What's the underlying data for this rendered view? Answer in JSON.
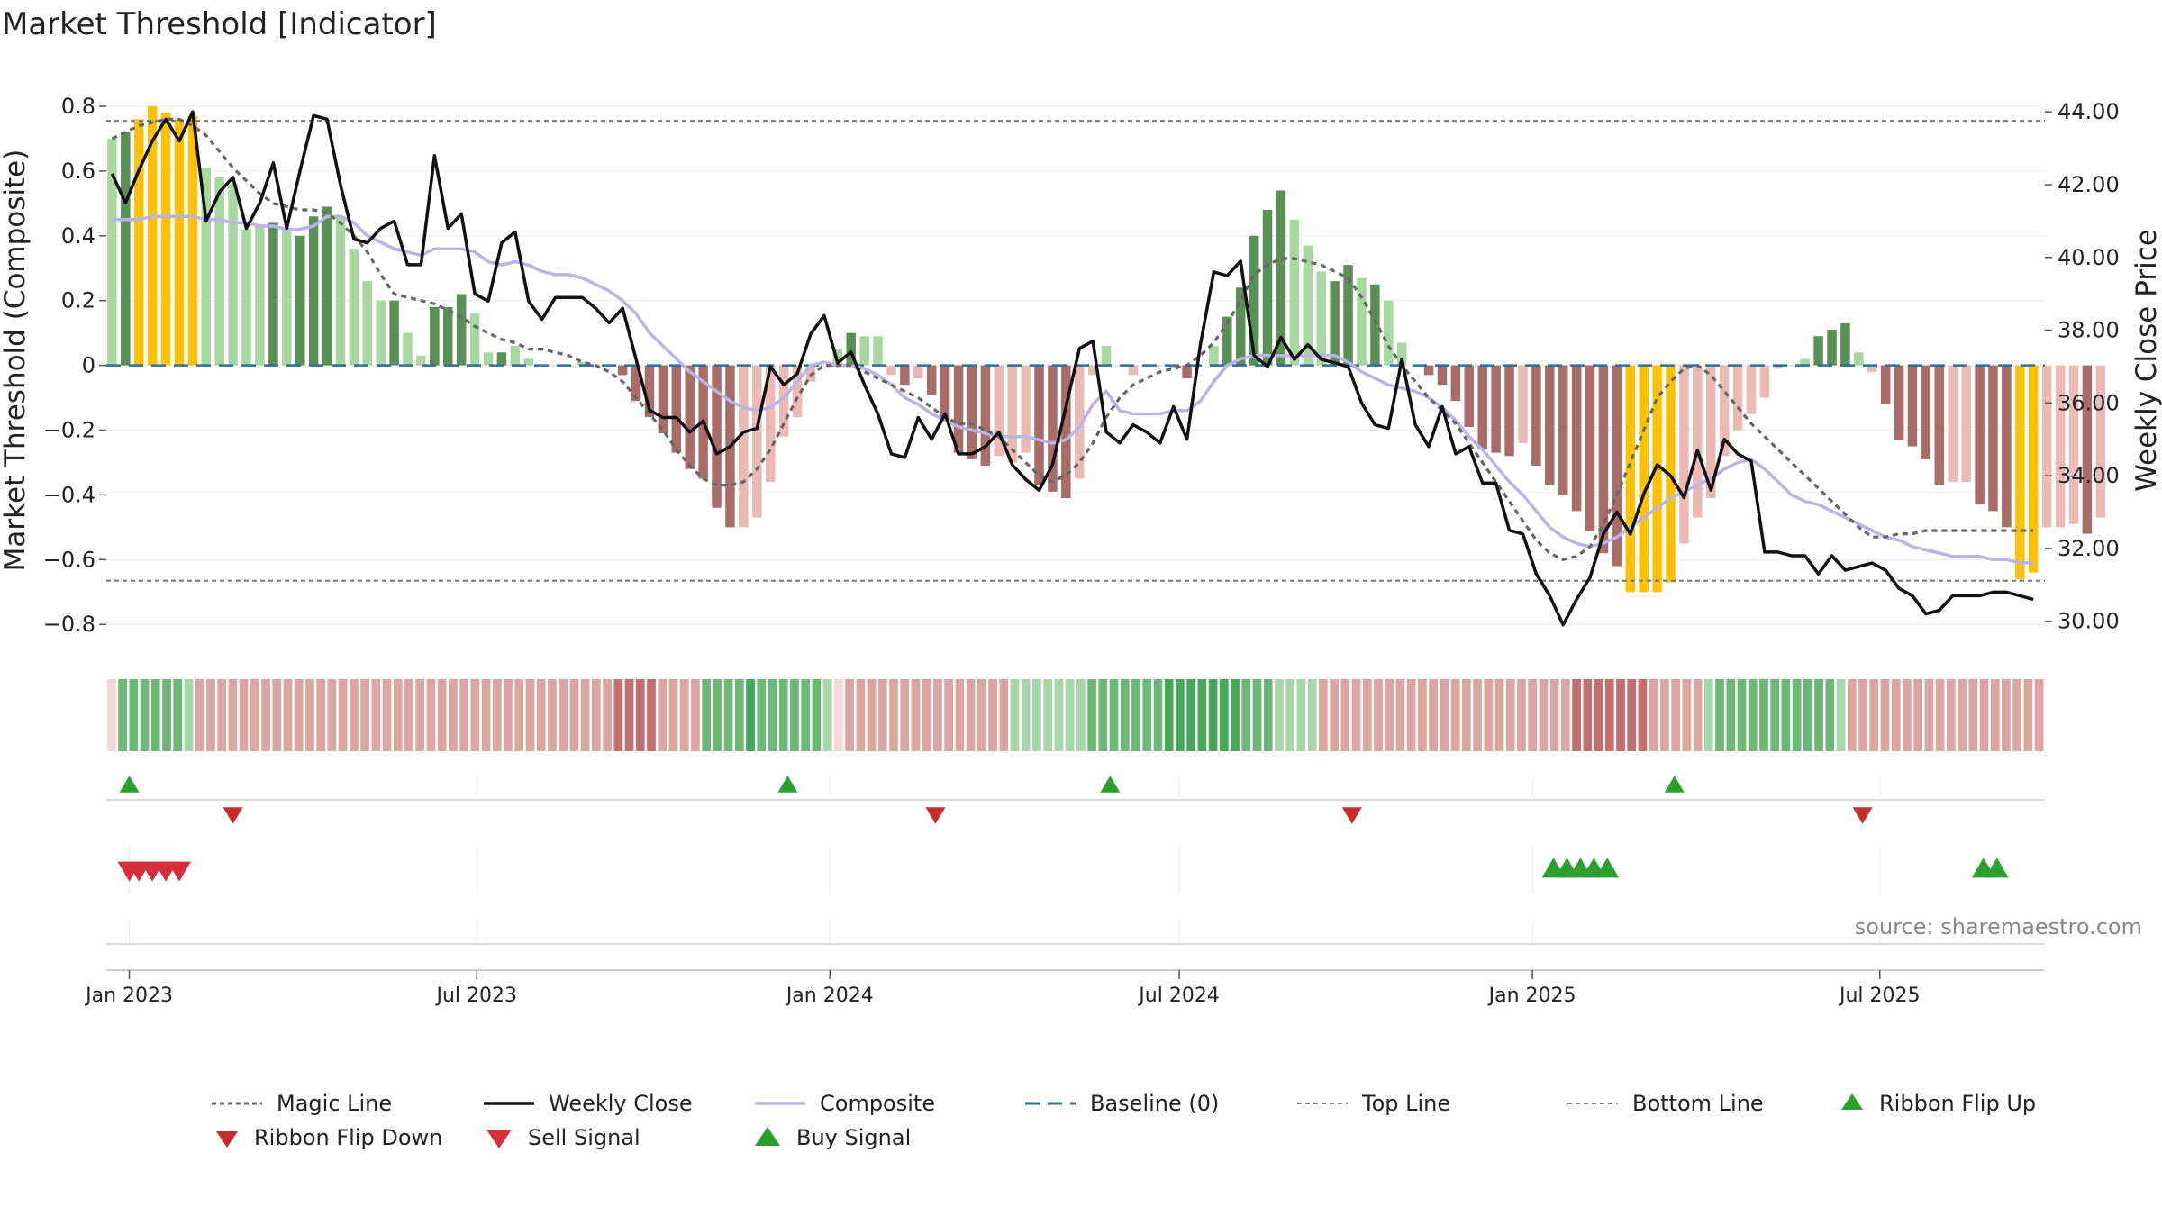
{
  "title": "Market Threshold [Indicator]",
  "source": "source: sharemaestro.com",
  "chart_data": {
    "type": "bar",
    "title": "Market Threshold [Indicator]",
    "ylabel": "Market Threshold (Composite)",
    "y2label": "Weekly Close Price",
    "ylim": [
      -0.88,
      0.85
    ],
    "y2lim": [
      29.2,
      44.6
    ],
    "yticks": [
      0.8,
      0.6,
      0.4,
      0.2,
      0,
      -0.2,
      -0.4,
      -0.6,
      -0.8
    ],
    "ytick_labels": [
      "0.8",
      "0.6",
      "0.4",
      "0.2",
      "0",
      "−0.2",
      "−0.4",
      "−0.6",
      "−0.8"
    ],
    "y2ticks": [
      44,
      42,
      40,
      38,
      36,
      34,
      32,
      30
    ],
    "y2tick_labels": [
      "44.00",
      "42.00",
      "40.00",
      "38.00",
      "36.00",
      "34.00",
      "32.00",
      "30.00"
    ],
    "xlim": [
      "2022-12-20",
      "2025-09-25"
    ],
    "xticks": [
      {
        "date": "2023-01-01",
        "label": "Jan 2023"
      },
      {
        "date": "2023-07-01",
        "label": "Jul 2023"
      },
      {
        "date": "2024-01-01",
        "label": "Jan 2024"
      },
      {
        "date": "2024-07-01",
        "label": "Jul 2024"
      },
      {
        "date": "2025-01-01",
        "label": "Jan 2025"
      },
      {
        "date": "2025-07-01",
        "label": "Jul 2025"
      }
    ],
    "start_date": "2022-12-23",
    "grid": true,
    "top_line": 0.755,
    "bottom_line": -0.665,
    "baseline": 0,
    "legend_position": "bottom",
    "bar_colors": {
      "dark_green": "#5a8f55",
      "light_green": "#a8d8a0",
      "gold": "#ffc107",
      "dark_red": "#a86d68",
      "light_red": "#ebbab4"
    },
    "series_colors": {
      "magic_line": "#666666",
      "weekly_close": "#111111",
      "composite": "#b9b3e6",
      "baseline": "#2a6f97",
      "buy": "#2ca02c",
      "sell": "#d62f3c"
    },
    "composite_bars": [
      [
        0.7,
        "LG"
      ],
      [
        0.72,
        "DG"
      ],
      [
        0.76,
        "Y"
      ],
      [
        0.8,
        "Y"
      ],
      [
        0.78,
        "Y"
      ],
      [
        0.76,
        "Y"
      ],
      [
        0.77,
        "Y"
      ],
      [
        0.61,
        "LG"
      ],
      [
        0.58,
        "LG"
      ],
      [
        0.56,
        "LG"
      ],
      [
        0.42,
        "LG"
      ],
      [
        0.43,
        "LG"
      ],
      [
        0.44,
        "DG"
      ],
      [
        0.42,
        "LG"
      ],
      [
        0.4,
        "DG"
      ],
      [
        0.46,
        "DG"
      ],
      [
        0.49,
        "DG"
      ],
      [
        0.46,
        "LG"
      ],
      [
        0.36,
        "LG"
      ],
      [
        0.26,
        "LG"
      ],
      [
        0.2,
        "LG"
      ],
      [
        0.2,
        "DG"
      ],
      [
        0.1,
        "LG"
      ],
      [
        0.03,
        "LG"
      ],
      [
        0.18,
        "DG"
      ],
      [
        0.18,
        "DG"
      ],
      [
        0.22,
        "DG"
      ],
      [
        0.16,
        "LG"
      ],
      [
        0.04,
        "LG"
      ],
      [
        0.04,
        "DG"
      ],
      [
        0.06,
        "LG"
      ],
      [
        0.02,
        "LG"
      ],
      [
        0.0,
        "LG"
      ],
      [
        0.0,
        "LG"
      ],
      [
        0.0,
        "LG"
      ],
      [
        0.01,
        "LG"
      ],
      [
        0.0,
        "LG"
      ],
      [
        0.0,
        "LG"
      ],
      [
        -0.03,
        "DR"
      ],
      [
        -0.11,
        "DR"
      ],
      [
        -0.16,
        "DR"
      ],
      [
        -0.21,
        "DR"
      ],
      [
        -0.27,
        "DR"
      ],
      [
        -0.32,
        "DR"
      ],
      [
        -0.35,
        "DR"
      ],
      [
        -0.44,
        "DR"
      ],
      [
        -0.5,
        "DR"
      ],
      [
        -0.5,
        "LR"
      ],
      [
        -0.47,
        "LR"
      ],
      [
        -0.36,
        "LR"
      ],
      [
        -0.22,
        "LR"
      ],
      [
        -0.16,
        "LR"
      ],
      [
        -0.05,
        "LR"
      ],
      [
        0.0,
        "LG"
      ],
      [
        0.05,
        "LG"
      ],
      [
        0.1,
        "DG"
      ],
      [
        0.09,
        "LG"
      ],
      [
        0.09,
        "LG"
      ],
      [
        -0.03,
        "LR"
      ],
      [
        -0.06,
        "DR"
      ],
      [
        -0.04,
        "LR"
      ],
      [
        -0.09,
        "DR"
      ],
      [
        -0.17,
        "DR"
      ],
      [
        -0.27,
        "DR"
      ],
      [
        -0.29,
        "DR"
      ],
      [
        -0.31,
        "DR"
      ],
      [
        -0.28,
        "LR"
      ],
      [
        -0.3,
        "LR"
      ],
      [
        -0.27,
        "LR"
      ],
      [
        -0.37,
        "DR"
      ],
      [
        -0.39,
        "DR"
      ],
      [
        -0.41,
        "DR"
      ],
      [
        -0.35,
        "LR"
      ],
      [
        -0.03,
        "LR"
      ],
      [
        0.06,
        "LG"
      ],
      [
        0.0,
        "LG"
      ],
      [
        -0.03,
        "LR"
      ],
      [
        0.0,
        "LG"
      ],
      [
        0.0,
        "LG"
      ],
      [
        -0.01,
        "LR"
      ],
      [
        -0.04,
        "DR"
      ],
      [
        0.0,
        "LG"
      ],
      [
        0.06,
        "LG"
      ],
      [
        0.15,
        "DG"
      ],
      [
        0.24,
        "DG"
      ],
      [
        0.4,
        "DG"
      ],
      [
        0.48,
        "DG"
      ],
      [
        0.54,
        "DG"
      ],
      [
        0.45,
        "LG"
      ],
      [
        0.37,
        "LG"
      ],
      [
        0.29,
        "LG"
      ],
      [
        0.26,
        "DG"
      ],
      [
        0.31,
        "DG"
      ],
      [
        0.27,
        "LG"
      ],
      [
        0.25,
        "DG"
      ],
      [
        0.2,
        "LG"
      ],
      [
        0.07,
        "LG"
      ],
      [
        0.0,
        "LG"
      ],
      [
        -0.03,
        "DR"
      ],
      [
        -0.06,
        "DR"
      ],
      [
        -0.11,
        "DR"
      ],
      [
        -0.19,
        "DR"
      ],
      [
        -0.26,
        "DR"
      ],
      [
        -0.27,
        "DR"
      ],
      [
        -0.28,
        "DR"
      ],
      [
        -0.24,
        "LR"
      ],
      [
        -0.31,
        "DR"
      ],
      [
        -0.37,
        "DR"
      ],
      [
        -0.4,
        "DR"
      ],
      [
        -0.45,
        "DR"
      ],
      [
        -0.51,
        "DR"
      ],
      [
        -0.58,
        "DR"
      ],
      [
        -0.62,
        "DR"
      ],
      [
        -0.7,
        "Y"
      ],
      [
        -0.7,
        "Y"
      ],
      [
        -0.7,
        "Y"
      ],
      [
        -0.67,
        "Y"
      ],
      [
        -0.55,
        "LR"
      ],
      [
        -0.47,
        "LR"
      ],
      [
        -0.41,
        "LR"
      ],
      [
        -0.28,
        "LR"
      ],
      [
        -0.2,
        "LR"
      ],
      [
        -0.15,
        "LR"
      ],
      [
        -0.1,
        "LR"
      ],
      [
        -0.01,
        "LR"
      ],
      [
        0.0,
        "LG"
      ],
      [
        0.02,
        "LG"
      ],
      [
        0.09,
        "DG"
      ],
      [
        0.11,
        "DG"
      ],
      [
        0.13,
        "DG"
      ],
      [
        0.04,
        "LG"
      ],
      [
        -0.02,
        "LR"
      ],
      [
        -0.12,
        "DR"
      ],
      [
        -0.23,
        "DR"
      ],
      [
        -0.25,
        "DR"
      ],
      [
        -0.29,
        "DR"
      ],
      [
        -0.37,
        "DR"
      ],
      [
        -0.36,
        "LR"
      ],
      [
        -0.36,
        "LR"
      ],
      [
        -0.43,
        "DR"
      ],
      [
        -0.45,
        "DR"
      ],
      [
        -0.5,
        "DR"
      ],
      [
        -0.66,
        "Y"
      ],
      [
        -0.64,
        "Y"
      ],
      [
        -0.5,
        "LR"
      ],
      [
        -0.5,
        "LR"
      ],
      [
        -0.49,
        "LR"
      ],
      [
        -0.52,
        "DR"
      ],
      [
        -0.47,
        "LR"
      ]
    ],
    "weekly_close": [
      42.3,
      41.5,
      42.4,
      43.2,
      43.8,
      43.2,
      44.0,
      41.0,
      41.8,
      42.2,
      40.8,
      41.5,
      42.6,
      40.8,
      42.4,
      43.9,
      43.8,
      42.0,
      40.5,
      40.4,
      40.8,
      41.0,
      39.8,
      39.8,
      42.8,
      40.8,
      41.2,
      39.0,
      38.8,
      40.4,
      40.7,
      38.8,
      38.3,
      38.9,
      38.9,
      38.9,
      38.6,
      38.2,
      38.6,
      37.2,
      35.8,
      35.6,
      35.6,
      35.2,
      35.5,
      34.6,
      34.8,
      35.2,
      35.3,
      37.0,
      36.5,
      36.8,
      37.9,
      38.4,
      37.1,
      37.4,
      36.5,
      35.7,
      34.6,
      34.5,
      35.6,
      35.0,
      35.7,
      34.6,
      34.6,
      34.8,
      35.2,
      34.3,
      33.9,
      33.6,
      34.3,
      35.9,
      37.5,
      37.7,
      35.2,
      34.9,
      35.4,
      35.2,
      34.9,
      35.9,
      35.0,
      37.6,
      39.6,
      39.5,
      39.9,
      37.3,
      37.0,
      37.8,
      37.2,
      37.6,
      37.2,
      37.1,
      37.0,
      36.0,
      35.4,
      35.3,
      37.2,
      35.4,
      34.8,
      35.9,
      34.6,
      34.8,
      33.8,
      33.8,
      32.5,
      32.4,
      31.3,
      30.7,
      29.9,
      30.6,
      31.2,
      32.4,
      33.0,
      32.4,
      33.5,
      34.3,
      34.0,
      33.4,
      34.7,
      33.6,
      35.0,
      34.6,
      34.4,
      31.9,
      31.9,
      31.8,
      31.8,
      31.3,
      31.8,
      31.4,
      31.5,
      31.6,
      31.4,
      30.9,
      30.7,
      30.2,
      30.3,
      30.7,
      30.7,
      30.7,
      30.8,
      30.8,
      30.7,
      30.6
    ],
    "composite_line": [
      0.45,
      0.45,
      0.45,
      0.46,
      0.46,
      0.46,
      0.46,
      0.45,
      0.45,
      0.44,
      0.44,
      0.43,
      0.43,
      0.42,
      0.42,
      0.43,
      0.46,
      0.46,
      0.44,
      0.4,
      0.38,
      0.36,
      0.35,
      0.34,
      0.36,
      0.36,
      0.36,
      0.35,
      0.32,
      0.31,
      0.32,
      0.31,
      0.29,
      0.28,
      0.28,
      0.27,
      0.25,
      0.23,
      0.2,
      0.16,
      0.1,
      0.06,
      0.02,
      -0.02,
      -0.05,
      -0.08,
      -0.11,
      -0.13,
      -0.14,
      -0.13,
      -0.1,
      -0.05,
      0.0,
      0.01,
      0.0,
      0.0,
      -0.01,
      -0.03,
      -0.06,
      -0.1,
      -0.12,
      -0.15,
      -0.17,
      -0.19,
      -0.2,
      -0.21,
      -0.22,
      -0.22,
      -0.22,
      -0.23,
      -0.24,
      -0.23,
      -0.19,
      -0.12,
      -0.08,
      -0.14,
      -0.15,
      -0.15,
      -0.15,
      -0.14,
      -0.14,
      -0.11,
      -0.05,
      0.0,
      0.02,
      0.03,
      0.03,
      0.03,
      0.03,
      0.03,
      0.03,
      0.03,
      0.01,
      -0.02,
      -0.04,
      -0.06,
      -0.07,
      -0.08,
      -0.1,
      -0.13,
      -0.17,
      -0.22,
      -0.26,
      -0.31,
      -0.36,
      -0.4,
      -0.45,
      -0.5,
      -0.53,
      -0.55,
      -0.56,
      -0.55,
      -0.53,
      -0.5,
      -0.47,
      -0.44,
      -0.41,
      -0.39,
      -0.37,
      -0.35,
      -0.32,
      -0.3,
      -0.29,
      -0.32,
      -0.36,
      -0.4,
      -0.42,
      -0.43,
      -0.45,
      -0.47,
      -0.49,
      -0.51,
      -0.53,
      -0.54,
      -0.56,
      -0.57,
      -0.58,
      -0.59,
      -0.59,
      -0.59,
      -0.6,
      -0.6,
      -0.61,
      -0.61
    ],
    "magic_line": [
      0.7,
      0.72,
      0.74,
      0.75,
      0.76,
      0.76,
      0.74,
      0.71,
      0.66,
      0.61,
      0.57,
      0.53,
      0.5,
      0.49,
      0.48,
      0.48,
      0.47,
      0.44,
      0.4,
      0.35,
      0.28,
      0.22,
      0.21,
      0.2,
      0.19,
      0.17,
      0.15,
      0.12,
      0.1,
      0.08,
      0.07,
      0.05,
      0.05,
      0.04,
      0.03,
      0.01,
      0.0,
      -0.02,
      -0.05,
      -0.1,
      -0.15,
      -0.2,
      -0.26,
      -0.31,
      -0.35,
      -0.37,
      -0.37,
      -0.36,
      -0.32,
      -0.26,
      -0.18,
      -0.1,
      -0.03,
      0.0,
      0.0,
      0.0,
      -0.02,
      -0.04,
      -0.06,
      -0.08,
      -0.1,
      -0.13,
      -0.16,
      -0.18,
      -0.18,
      -0.2,
      -0.22,
      -0.26,
      -0.3,
      -0.34,
      -0.36,
      -0.34,
      -0.3,
      -0.24,
      -0.16,
      -0.1,
      -0.06,
      -0.04,
      -0.02,
      -0.01,
      0.0,
      0.03,
      0.07,
      0.13,
      0.2,
      0.28,
      0.31,
      0.33,
      0.33,
      0.32,
      0.31,
      0.29,
      0.27,
      0.21,
      0.14,
      0.06,
      0.0,
      -0.05,
      -0.1,
      -0.14,
      -0.18,
      -0.24,
      -0.3,
      -0.36,
      -0.42,
      -0.48,
      -0.54,
      -0.58,
      -0.6,
      -0.59,
      -0.56,
      -0.49,
      -0.4,
      -0.3,
      -0.2,
      -0.1,
      -0.05,
      -0.01,
      0.0,
      -0.03,
      -0.08,
      -0.13,
      -0.18,
      -0.22,
      -0.26,
      -0.3,
      -0.34,
      -0.38,
      -0.42,
      -0.46,
      -0.5,
      -0.53,
      -0.53,
      -0.52,
      -0.52,
      -0.51,
      -0.51,
      -0.51,
      -0.51,
      -0.51,
      -0.51,
      -0.51,
      -0.51,
      -0.51
    ],
    "ribbon_levels": [
      0,
      2,
      2,
      2,
      2,
      2,
      2,
      1,
      -2,
      -2,
      -2,
      -2,
      -2,
      -2,
      -2,
      -2,
      -2,
      -2,
      -2,
      -2,
      -2,
      -2,
      -2,
      -2,
      -2,
      -2,
      -2,
      -2,
      -2,
      -2,
      -2,
      -2,
      -2,
      -2,
      -2,
      -2,
      -2,
      -2,
      -2,
      -2,
      -2,
      -2,
      -2,
      -2,
      -2,
      -2,
      -3,
      -3,
      -3,
      -3,
      -2,
      -2,
      -2,
      -2,
      2,
      2,
      2,
      2,
      3,
      2,
      2,
      2,
      2,
      2,
      2,
      1,
      0,
      -2,
      -2,
      -2,
      -2,
      -2,
      -2,
      -2,
      -2,
      -2,
      -2,
      -2,
      -2,
      -2,
      -2,
      -2,
      1,
      1,
      1,
      1,
      1,
      1,
      1,
      2,
      2,
      2,
      2,
      2,
      2,
      2,
      3,
      3,
      3,
      3,
      3,
      3,
      3,
      2,
      2,
      2,
      1,
      1,
      1,
      1,
      -2,
      -2,
      -2,
      -2,
      -2,
      -2,
      -2,
      -2,
      -2,
      -2,
      -2,
      -2,
      -2,
      -2,
      -2,
      -2,
      -2,
      -2,
      -2,
      -2,
      -2,
      -2,
      -2,
      -3,
      -3,
      -3,
      -3,
      -3,
      -3,
      -3,
      -2,
      -2,
      -2,
      -2,
      -2,
      1,
      2,
      2,
      2,
      2,
      2,
      2,
      2,
      2,
      2,
      2,
      2,
      1,
      -2,
      -2,
      -2,
      -2,
      -2,
      -2,
      -2,
      -2,
      -2,
      -2,
      -2,
      -2,
      -2,
      -2,
      -2,
      -2,
      -2,
      -2
    ],
    "ribbon_flip_up": [
      "2023-01-01",
      "2023-12-10",
      "2024-05-26",
      "2025-03-16"
    ],
    "ribbon_flip_down": [
      "2023-02-24",
      "2024-02-25",
      "2024-09-29",
      "2025-06-22"
    ],
    "sell_signals": [
      "2023-01-01",
      "2023-01-06",
      "2023-01-13",
      "2023-01-20",
      "2023-01-27"
    ],
    "buy_signals": [
      "2025-01-12",
      "2025-01-19",
      "2025-01-26",
      "2025-02-02",
      "2025-02-09",
      "2025-08-24",
      "2025-08-31"
    ],
    "legend": [
      {
        "key": "magic",
        "label": "Magic Line"
      },
      {
        "key": "close",
        "label": "Weekly Close"
      },
      {
        "key": "composite",
        "label": "Composite"
      },
      {
        "key": "baseline",
        "label": "Baseline (0)"
      },
      {
        "key": "top",
        "label": "Top Line"
      },
      {
        "key": "bottom",
        "label": "Bottom Line"
      },
      {
        "key": "flipup",
        "label": "Ribbon Flip Up"
      },
      {
        "key": "flipdown",
        "label": "Ribbon Flip Down"
      },
      {
        "key": "sell",
        "label": "Sell Signal"
      },
      {
        "key": "buy",
        "label": "Buy Signal"
      }
    ]
  }
}
